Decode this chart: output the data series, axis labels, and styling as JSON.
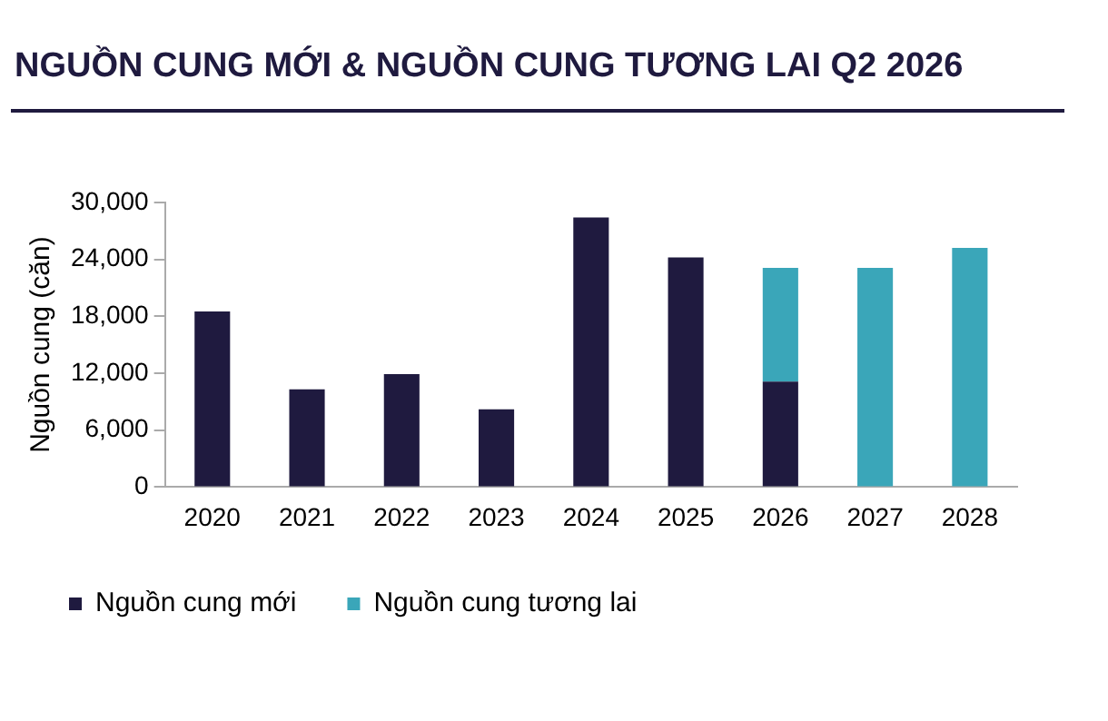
{
  "chart_data": {
    "type": "bar",
    "title": "NGUỒN CUNG MỚI & NGUỒN CUNG TƯƠNG LAI Q2 2026",
    "ylabel": "Nguồn cung (căn)",
    "categories": [
      "2020",
      "2021",
      "2022",
      "2023",
      "2024",
      "2025",
      "2026",
      "2027",
      "2028"
    ],
    "series": [
      {
        "name": "Nguồn cung mới",
        "color": "#1f1a3f",
        "values": [
          18500,
          10300,
          11900,
          8200,
          28400,
          24200,
          11100,
          null,
          null
        ]
      },
      {
        "name": "Nguồn cung tương lai",
        "color": "#3aa6b9",
        "values": [
          null,
          null,
          null,
          null,
          null,
          null,
          12000,
          23100,
          25200
        ]
      }
    ],
    "stacked": true,
    "ylim": [
      0,
      30000
    ],
    "yticks": [
      {
        "value": 0,
        "label": "0"
      },
      {
        "value": 6000,
        "label": "6,000"
      },
      {
        "value": 12000,
        "label": "12,000"
      },
      {
        "value": 18000,
        "label": "18,000"
      },
      {
        "value": 24000,
        "label": "24,000"
      },
      {
        "value": 30000,
        "label": "30,000"
      }
    ],
    "grid": false,
    "legend": "bottom"
  }
}
